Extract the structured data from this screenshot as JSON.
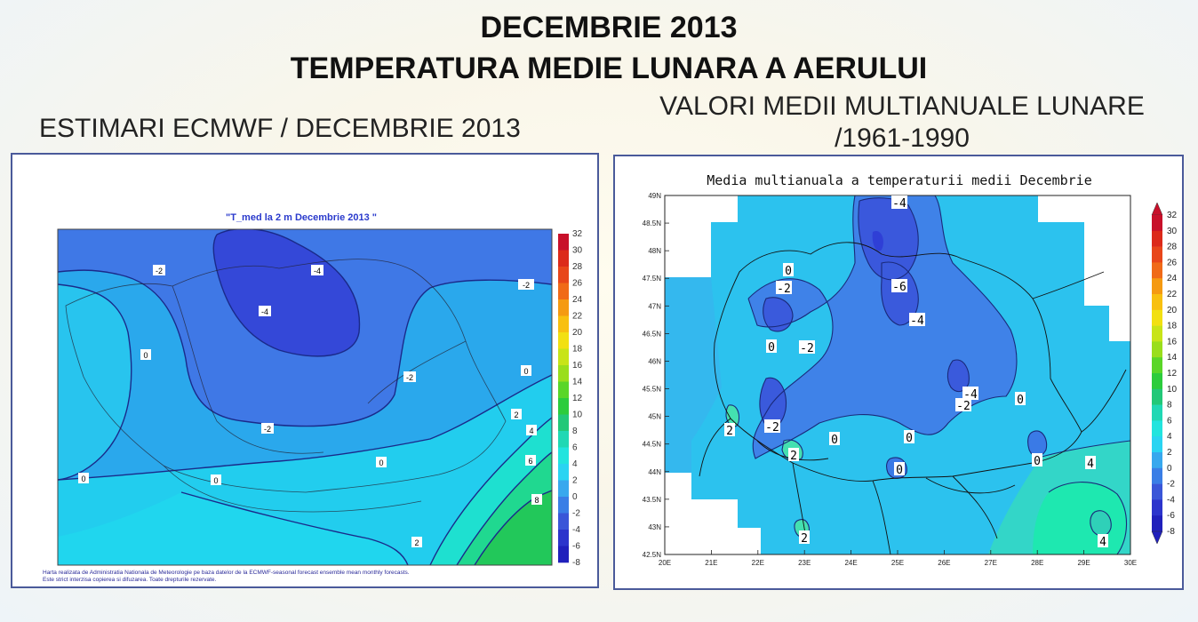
{
  "title": {
    "line1": "DECEMBRIE 2013",
    "line2": "TEMPERATURA MEDIE LUNARA A AERULUI"
  },
  "left_heading": "ESTIMARI ECMWF / DECEMBRIE 2013",
  "right_heading": {
    "line1": "VALORI MEDII MULTIANUALE LUNARE",
    "line2": "/1961-1990"
  },
  "left_map": {
    "title": "\"T_med la 2 m Decembrie 2013 \"",
    "footer_line1": "Harta realizata de Administratia Nationala de Meteorologie pe baza datelor de la ECMWF-seasonal forecast ensemble mean monthly forecasts.",
    "footer_line2": "Este strict interzisa copierea si difuzarea. Toate drepturile rezervate.",
    "contour_labels": [
      "-2",
      "-4",
      "-4",
      "-2",
      "-2",
      "0",
      "0",
      "-2",
      "0",
      "0",
      "0",
      "2",
      "4",
      "6",
      "8",
      "2"
    ],
    "scale_labels": [
      "32",
      "30",
      "28",
      "26",
      "24",
      "22",
      "20",
      "18",
      "16",
      "14",
      "12",
      "10",
      "8",
      "6",
      "4",
      "2",
      "0",
      "-2",
      "-4",
      "-6",
      "-8"
    ]
  },
  "right_map": {
    "title": "Media multianuala a temperaturii medii Decembrie",
    "lat_labels": [
      "49N",
      "48.5N",
      "48N",
      "47.5N",
      "47N",
      "46.5N",
      "46N",
      "45.5N",
      "45N",
      "44.5N",
      "44N",
      "43.5N",
      "43N",
      "42.5N"
    ],
    "lon_labels": [
      "20E",
      "21E",
      "22E",
      "23E",
      "24E",
      "25E",
      "26E",
      "27E",
      "28E",
      "29E",
      "30E"
    ],
    "contour_labels": [
      "-4",
      "0",
      "-2",
      "-6",
      "-4",
      "0",
      "-2",
      "-4",
      "-2",
      "0",
      "2",
      "-2",
      "0",
      "0",
      "2",
      "0",
      "0",
      "4",
      "2",
      "4"
    ],
    "scale_labels": [
      "32",
      "30",
      "28",
      "26",
      "24",
      "22",
      "20",
      "18",
      "16",
      "14",
      "12",
      "10",
      "8",
      "6",
      "4",
      "2",
      "0",
      "-2",
      "-4",
      "-6",
      "-8"
    ]
  },
  "colors": {
    "deep_blue": "#2f3fd8",
    "mid_blue": "#4a78e8",
    "light_blue": "#3fb8ee",
    "cyan": "#22d8f0",
    "green": "#22cc66"
  }
}
